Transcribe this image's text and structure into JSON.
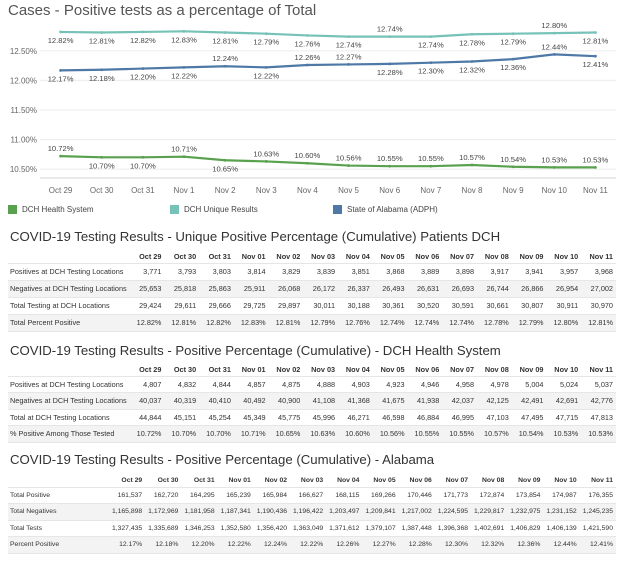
{
  "chart_data": {
    "type": "line",
    "title": "Cases - Positive tests as a percentage of Total",
    "x": [
      "Oct 29",
      "Oct 30",
      "Oct 31",
      "Nov 1",
      "Nov 2",
      "Nov 3",
      "Nov 4",
      "Nov 5",
      "Nov 6",
      "Nov 7",
      "Nov 8",
      "Nov 9",
      "Nov 10",
      "Nov 11"
    ],
    "y_ticks": [
      "12.50%",
      "12.00%",
      "11.50%",
      "11.00%",
      "10.50%"
    ],
    "ylim": [
      10.35,
      12.92
    ],
    "grid": true,
    "legend_position": "bottom",
    "series": [
      {
        "name": "DCH Health System",
        "color": "#59a14f",
        "values": [
          10.72,
          10.7,
          10.7,
          10.71,
          10.65,
          10.63,
          10.6,
          10.56,
          10.55,
          10.55,
          10.57,
          10.54,
          10.53,
          10.53
        ],
        "labels": [
          "10.72%",
          "10.70%",
          "10.70%",
          "10.71%",
          "10.65%",
          "10.63%",
          "10.60%",
          "10.56%",
          "10.55%",
          "10.55%",
          "10.57%",
          "10.54%",
          "10.53%",
          "10.53%"
        ]
      },
      {
        "name": "DCH Unique Results",
        "color": "#76c2b8",
        "values": [
          12.82,
          12.81,
          12.82,
          12.83,
          12.81,
          12.79,
          12.76,
          12.74,
          12.74,
          12.74,
          12.78,
          12.79,
          12.8,
          12.81
        ],
        "labels": [
          "12.82%",
          "12.81%",
          "12.82%",
          "12.83%",
          "12.81%",
          "12.79%",
          "12.76%",
          "12.74%",
          "12.74%",
          "12.74%",
          "12.78%",
          "12.79%",
          "12.80%",
          "12.81%"
        ]
      },
      {
        "name": "State of Alabama (ADPH)",
        "color": "#4e79a7",
        "values": [
          12.17,
          12.18,
          12.2,
          12.22,
          12.24,
          12.22,
          12.26,
          12.27,
          12.28,
          12.3,
          12.32,
          12.36,
          12.44,
          12.41
        ],
        "labels": [
          "12.17%",
          "12.18%",
          "12.20%",
          "12.22%",
          "12.24%",
          "12.22%",
          "12.26%",
          "12.27%",
          "12.28%",
          "12.30%",
          "12.32%",
          "12.36%",
          "12.44%",
          "12.41%"
        ]
      }
    ]
  },
  "legend": [
    {
      "label": "DCH Health System",
      "color": "#59a14f"
    },
    {
      "label": "DCH Unique Results",
      "color": "#76c2b8"
    },
    {
      "label": "State of Alabama (ADPH)",
      "color": "#4e79a7"
    }
  ],
  "tables": [
    {
      "title": "COVID-19 Testing Results - Unique Positive Percentage (Cumulative) Patients DCH",
      "columns": [
        "Oct 29",
        "Oct 30",
        "Oct 31",
        "Nov 01",
        "Nov 02",
        "Nov 03",
        "Nov 04",
        "Nov 05",
        "Nov 06",
        "Nov 07",
        "Nov 08",
        "Nov 09",
        "Nov 10",
        "Nov 11"
      ],
      "rows": [
        {
          "label": "Positives at DCH Testing Locations",
          "values": [
            "3,771",
            "3,793",
            "3,803",
            "3,814",
            "3,829",
            "3,839",
            "3,851",
            "3,868",
            "3,889",
            "3,898",
            "3,917",
            "3,941",
            "3,957",
            "3,968"
          ]
        },
        {
          "label": "Negatives at DCH Testing Locations",
          "values": [
            "25,653",
            "25,818",
            "25,863",
            "25,911",
            "26,068",
            "26,172",
            "26,337",
            "26,493",
            "26,631",
            "26,693",
            "26,744",
            "26,866",
            "26,954",
            "27,002"
          ]
        },
        {
          "label": "Total Testing at DCH Locations",
          "values": [
            "29,424",
            "29,611",
            "29,666",
            "29,725",
            "29,897",
            "30,011",
            "30,188",
            "30,361",
            "30,520",
            "30,591",
            "30,661",
            "30,807",
            "30,911",
            "30,970"
          ]
        },
        {
          "label": "Total Percent Positive",
          "values": [
            "12.82%",
            "12.81%",
            "12.82%",
            "12.83%",
            "12.81%",
            "12.79%",
            "12.76%",
            "12.74%",
            "12.74%",
            "12.74%",
            "12.78%",
            "12.79%",
            "12.80%",
            "12.81%"
          ]
        }
      ]
    },
    {
      "title": "COVID-19 Testing Results - Positive Percentage (Cumulative) - DCH Health System",
      "columns": [
        "Oct 29",
        "Oct 30",
        "Oct 31",
        "Nov 01",
        "Nov 02",
        "Nov 03",
        "Nov 04",
        "Nov 05",
        "Nov 06",
        "Nov 07",
        "Nov 08",
        "Nov 09",
        "Nov 10",
        "Nov 11"
      ],
      "rows": [
        {
          "label": "Positives at DCH Testing Locations",
          "values": [
            "4,807",
            "4,832",
            "4,844",
            "4,857",
            "4,875",
            "4,888",
            "4,903",
            "4,923",
            "4,946",
            "4,958",
            "4,978",
            "5,004",
            "5,024",
            "5,037"
          ]
        },
        {
          "label": "Negatives at DCH Testing Locations",
          "values": [
            "40,037",
            "40,319",
            "40,410",
            "40,492",
            "40,900",
            "41,108",
            "41,368",
            "41,675",
            "41,938",
            "42,037",
            "42,125",
            "42,491",
            "42,691",
            "42,776"
          ]
        },
        {
          "label": "Total at DCH Testing Locations",
          "values": [
            "44,844",
            "45,151",
            "45,254",
            "45,349",
            "45,775",
            "45,996",
            "46,271",
            "46,598",
            "46,884",
            "46,995",
            "47,103",
            "47,495",
            "47,715",
            "47,813"
          ]
        },
        {
          "label": "% Positive Among Those Tested",
          "values": [
            "10.72%",
            "10.70%",
            "10.70%",
            "10.71%",
            "10.65%",
            "10.63%",
            "10.60%",
            "10.56%",
            "10.55%",
            "10.55%",
            "10.57%",
            "10.54%",
            "10.53%",
            "10.53%"
          ]
        }
      ]
    },
    {
      "title": "COVID-19 Testing Results - Positive Percentage (Cumulative) - Alabama",
      "columns": [
        "Oct 29",
        "Oct 30",
        "Oct 31",
        "Nov 01",
        "Nov 02",
        "Nov 03",
        "Nov 04",
        "Nov 05",
        "Nov 06",
        "Nov 07",
        "Nov 08",
        "Nov 09",
        "Nov 10",
        "Nov 11"
      ],
      "rows": [
        {
          "label": "Total Positive",
          "values": [
            "161,537",
            "162,720",
            "164,295",
            "165,239",
            "165,984",
            "166,627",
            "168,115",
            "169,266",
            "170,446",
            "171,773",
            "172,874",
            "173,854",
            "174,987",
            "176,355"
          ]
        },
        {
          "label": "Total Negatives",
          "values": [
            "1,165,898",
            "1,172,969",
            "1,181,958",
            "1,187,341",
            "1,190,436",
            "1,196,422",
            "1,203,497",
            "1,209,841",
            "1,217,002",
            "1,224,595",
            "1,229,817",
            "1,232,975",
            "1,231,152",
            "1,245,235"
          ]
        },
        {
          "label": "Total Tests",
          "values": [
            "1,327,435",
            "1,335,689",
            "1,346,253",
            "1,352,580",
            "1,356,420",
            "1,363,049",
            "1,371,612",
            "1,379,107",
            "1,387,448",
            "1,396,368",
            "1,402,691",
            "1,406,829",
            "1,406,139",
            "1,421,590"
          ]
        },
        {
          "label": "Percent Positive",
          "values": [
            "12.17%",
            "12.18%",
            "12.20%",
            "12.22%",
            "12.24%",
            "12.22%",
            "12.26%",
            "12.27%",
            "12.28%",
            "12.30%",
            "12.32%",
            "12.36%",
            "12.44%",
            "12.41%"
          ]
        }
      ]
    }
  ]
}
